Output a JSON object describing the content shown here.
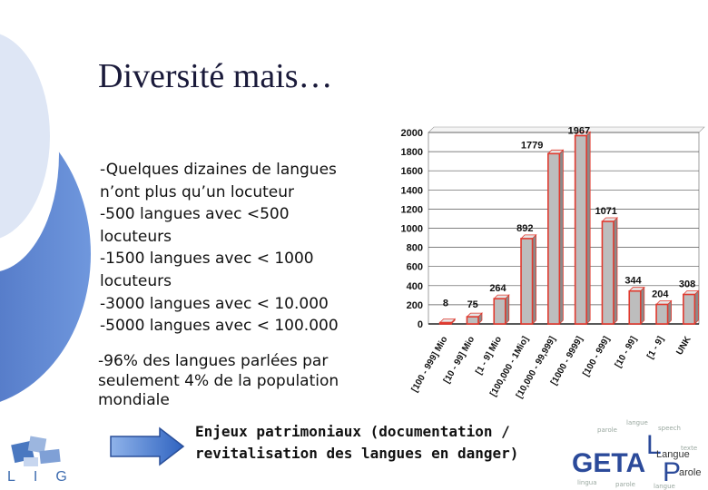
{
  "slide": {
    "title": "Diversité mais…",
    "bullets": [
      "-Quelques dizaines de langues",
      "n’ont plus qu’un locuteur",
      "-500 langues avec <500",
      "locuteurs",
      "-1500 langues avec < 1000",
      "locuteurs",
      "-3000 langues avec < 10.000",
      "-5000 langues avec < 100.000"
    ],
    "note_lines": [
      "-96% des langues parlées par",
      "seulement 4% de la population",
      "mondiale"
    ],
    "enjeux_lines": [
      "Enjeux patrimoniaux (documentation /",
      "revitalisation des langues en danger)"
    ]
  },
  "logos": {
    "lig_text": "LIG",
    "geta_text": "GETA",
    "geta_small": "Langue",
    "geta_p": "arole",
    "geta_L": "L",
    "geta_P": "P"
  },
  "colors": {
    "accent_blue": "#3b6fc4",
    "bar_fill": "#bdbdbd",
    "bar_outline": "#e03a2f"
  },
  "chart_data": {
    "type": "bar",
    "categories": [
      "[100 - 999] Mio",
      "[10 - 99] Mio",
      "[1 - 9] Mio",
      "[100,000 - 1Mio]",
      "[10,000 - 99,999]",
      "[1000 - 9999]",
      "[100 - 999]",
      "[10 - 99]",
      "[1 - 9]",
      "UNK"
    ],
    "values": [
      8,
      75,
      264,
      892,
      1779,
      1967,
      1071,
      344,
      204,
      308
    ],
    "ylim": [
      0,
      2000
    ],
    "yticks": [
      "0",
      "200",
      "400",
      "600",
      "800",
      "1000",
      "1200",
      "1400",
      "1600",
      "1800",
      "2000"
    ],
    "data_labels": [
      "8",
      "75",
      "264",
      "892",
      "1779",
      "1967",
      "1071",
      "344",
      "204",
      "308"
    ],
    "title": "",
    "xlabel": "",
    "ylabel": ""
  }
}
